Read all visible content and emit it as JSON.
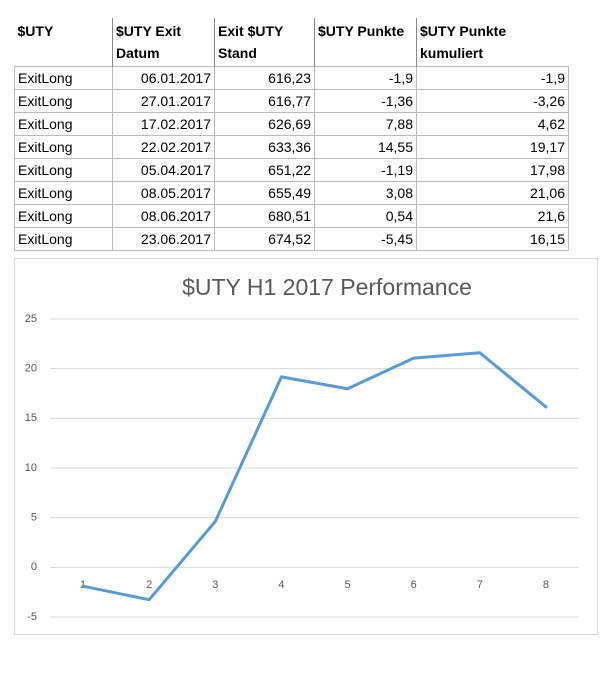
{
  "table": {
    "header": [
      "$UTY",
      "$UTY Exit Datum",
      "Exit $UTY Stand",
      "$UTY Punkte",
      "$UTY Punkte kumuliert"
    ],
    "rows": [
      [
        "ExitLong",
        "06.01.2017",
        "616,23",
        "-1,9",
        "-1,9"
      ],
      [
        "ExitLong",
        "27.01.2017",
        "616,77",
        "-1,36",
        "-3,26"
      ],
      [
        "ExitLong",
        "17.02.2017",
        "626,69",
        "7,88",
        "4,62"
      ],
      [
        "ExitLong",
        "22.02.2017",
        "633,36",
        "14,55",
        "19,17"
      ],
      [
        "ExitLong",
        "05.04.2017",
        "651,22",
        "-1,19",
        "17,98"
      ],
      [
        "ExitLong",
        "08.05.2017",
        "655,49",
        "3,08",
        "21,06"
      ],
      [
        "ExitLong",
        "08.06.2017",
        "680,51",
        "0,54",
        "21,6"
      ],
      [
        "ExitLong",
        "23.06.2017",
        "674,52",
        "-5,45",
        "16,15"
      ]
    ]
  },
  "chart_data": {
    "type": "line",
    "title": "$UTY H1 2017 Performance",
    "categories": [
      "1",
      "2",
      "3",
      "4",
      "5",
      "6",
      "7",
      "8"
    ],
    "values": [
      -1.9,
      -3.26,
      4.62,
      19.17,
      17.98,
      21.06,
      21.6,
      16.15
    ],
    "color": "#5b9bd5",
    "ylim": [
      -5,
      25
    ],
    "yticks": [
      -5,
      0,
      5,
      10,
      15,
      20,
      25
    ],
    "grid": true
  }
}
